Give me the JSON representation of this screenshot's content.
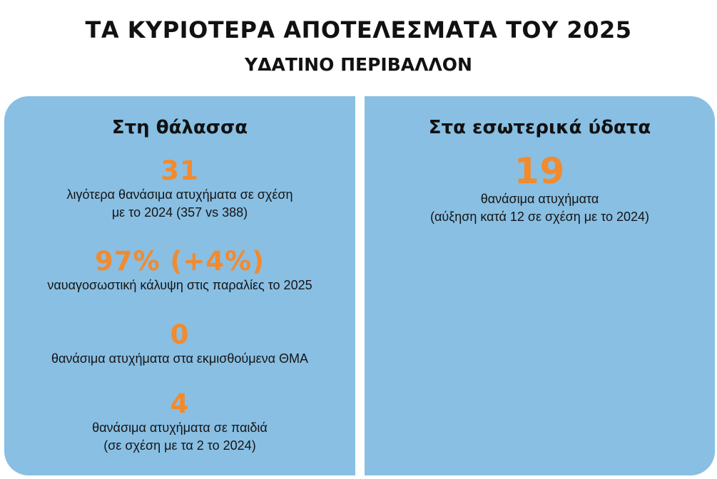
{
  "header": {
    "title": "ΤΑ ΚΥΡΙΟΤΕΡΑ ΑΠΟΤΕΛΕΣΜΑΤΑ ΤΟΥ 2025",
    "subtitle": "ΥΔΑΤΙΝΟ ΠΕΡΙΒΑΛΛΟΝ"
  },
  "colors": {
    "panel_background": "#89bfe3",
    "highlight": "#f28a2e",
    "text": "#111111"
  },
  "sea": {
    "heading": "Στη θάλασσα",
    "stats": [
      {
        "value": "31",
        "desc_line1": "λιγότερα θανάσιμα ατυχήματα σε σχέση",
        "desc_line2": "με το 2024 (357 vs 388)"
      },
      {
        "value": "97% (+4%)",
        "desc_line1": "ναυαγοσωστική κάλυψη στις παραλίες το 2025"
      },
      {
        "value": "0",
        "desc_line1": "θανάσιμα ατυχήματα στα εκμισθούμενα ΘΜΑ"
      },
      {
        "value": "4",
        "desc_line1": "θανάσιμα ατυχήματα σε παιδιά",
        "desc_line2": "(σε σχέση με τα 2 το 2024)"
      }
    ]
  },
  "inland": {
    "heading": "Στα εσωτερικά ύδατα",
    "stats": [
      {
        "value": "19",
        "desc_line1": "θανάσιμα ατυχήματα",
        "desc_line2": "(αύξηση κατά 12 σε σχέση με το 2024)"
      }
    ]
  }
}
